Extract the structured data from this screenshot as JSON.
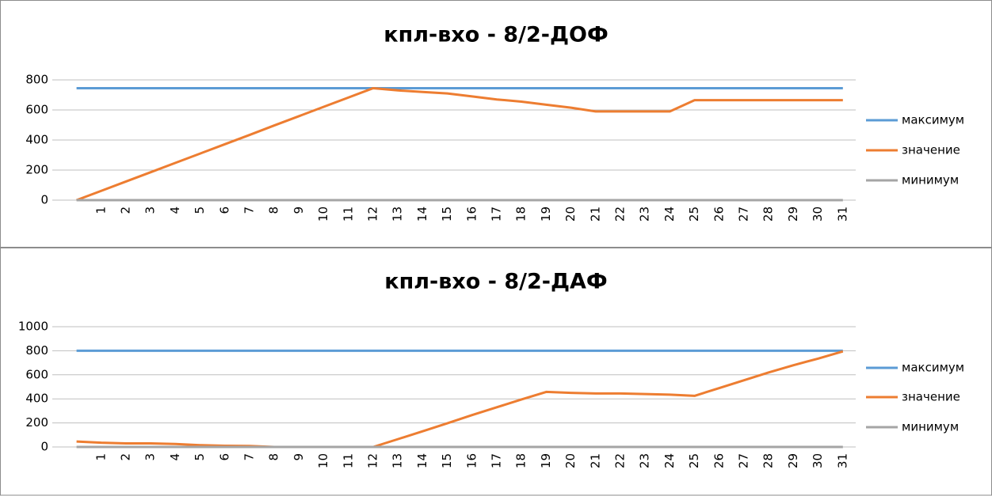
{
  "chart_data": [
    {
      "type": "line",
      "title": "кпл-вхо - 8/2-ДОФ",
      "categories": [
        null,
        "1",
        "2",
        "3",
        "4",
        "5",
        "6",
        "7",
        "8",
        "9",
        "10",
        "11",
        "12",
        "13",
        "14",
        "15",
        "16",
        "17",
        "18",
        "19",
        "20",
        "21",
        "22",
        "23",
        "24",
        "25",
        "26",
        "27",
        "28",
        "29",
        "30",
        "31"
      ],
      "series": [
        {
          "name": "максимум",
          "color": "#5b9bd5",
          "values": [
            745,
            745,
            745,
            745,
            745,
            745,
            745,
            745,
            745,
            745,
            745,
            745,
            745,
            745,
            745,
            745,
            745,
            745,
            745,
            745,
            745,
            745,
            745,
            745,
            745,
            745,
            745,
            745,
            745,
            745,
            745,
            745
          ]
        },
        {
          "name": "значение",
          "color": "#ed7d31",
          "values": [
            0,
            62,
            124,
            186,
            248,
            310,
            372,
            434,
            497,
            559,
            621,
            683,
            745,
            730,
            720,
            710,
            690,
            670,
            655,
            635,
            615,
            590,
            590,
            590,
            590,
            665,
            665,
            665,
            665,
            665,
            665,
            665
          ]
        },
        {
          "name": "минимум",
          "color": "#a5a5a5",
          "values": [
            0,
            0,
            0,
            0,
            0,
            0,
            0,
            0,
            0,
            0,
            0,
            0,
            0,
            0,
            0,
            0,
            0,
            0,
            0,
            0,
            0,
            0,
            0,
            0,
            0,
            0,
            0,
            0,
            0,
            0,
            0,
            0
          ]
        }
      ],
      "ylim": [
        0,
        800
      ],
      "yticks": [
        0,
        200,
        400,
        600,
        800
      ],
      "grid": true,
      "legend": "right"
    },
    {
      "type": "line",
      "title": "кпл-вхо - 8/2-ДАФ",
      "categories": [
        null,
        "1",
        "2",
        "3",
        "4",
        "5",
        "6",
        "7",
        "8",
        "9",
        "10",
        "11",
        "12",
        "13",
        "14",
        "15",
        "16",
        "17",
        "18",
        "19",
        "20",
        "21",
        "22",
        "23",
        "24",
        "25",
        "26",
        "27",
        "28",
        "29",
        "30",
        "31"
      ],
      "series": [
        {
          "name": "максимум",
          "color": "#5b9bd5",
          "values": [
            800,
            800,
            800,
            800,
            800,
            800,
            800,
            800,
            800,
            800,
            800,
            800,
            800,
            800,
            800,
            800,
            800,
            800,
            800,
            800,
            800,
            800,
            800,
            800,
            800,
            800,
            800,
            800,
            800,
            800,
            800,
            800
          ]
        },
        {
          "name": "значение",
          "color": "#ed7d31",
          "values": [
            45,
            35,
            30,
            30,
            25,
            15,
            10,
            8,
            0,
            0,
            0,
            0,
            0,
            65,
            130,
            197,
            265,
            330,
            395,
            458,
            450,
            445,
            445,
            440,
            435,
            425,
            490,
            555,
            620,
            680,
            735,
            795
          ]
        },
        {
          "name": "минимум",
          "color": "#a5a5a5",
          "values": [
            0,
            0,
            0,
            0,
            0,
            0,
            0,
            0,
            0,
            0,
            0,
            0,
            0,
            0,
            0,
            0,
            0,
            0,
            0,
            0,
            0,
            0,
            0,
            0,
            0,
            0,
            0,
            0,
            0,
            0,
            0,
            0
          ]
        }
      ],
      "ylim": [
        0,
        1000
      ],
      "yticks": [
        0,
        200,
        400,
        600,
        800,
        1000
      ],
      "grid": true,
      "legend": "right"
    }
  ]
}
